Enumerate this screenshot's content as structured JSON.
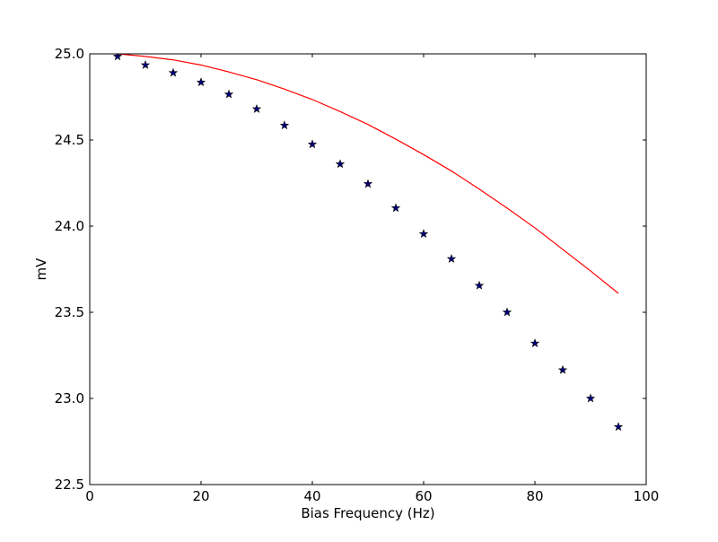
{
  "chart_data": {
    "type": "scatter",
    "title": "",
    "xlabel": "Bias Frequency (Hz)",
    "ylabel": "mV",
    "xlim": [
      0,
      100
    ],
    "ylim": [
      22.5,
      25.0
    ],
    "xticks": [
      0,
      20,
      40,
      60,
      80,
      100
    ],
    "xtick_labels": [
      "0",
      "20",
      "40",
      "60",
      "80",
      "100"
    ],
    "yticks": [
      22.5,
      23.0,
      23.5,
      24.0,
      24.5,
      25.0
    ],
    "ytick_labels": [
      "22.5",
      "23.0",
      "23.5",
      "24.0",
      "24.5",
      "25.0"
    ],
    "grid": false,
    "legend": "none",
    "series": [
      {
        "type": "line",
        "color": "#ff0000",
        "x": [
          5,
          10,
          15,
          20,
          25,
          30,
          35,
          40,
          45,
          50,
          55,
          60,
          65,
          70,
          75,
          80,
          85,
          90,
          95
        ],
        "y": [
          25.0,
          24.985,
          24.965,
          24.935,
          24.895,
          24.85,
          24.795,
          24.735,
          24.665,
          24.59,
          24.505,
          24.415,
          24.32,
          24.215,
          24.105,
          23.99,
          23.865,
          23.74,
          23.61
        ]
      },
      {
        "type": "scatter",
        "marker": "star",
        "color": "#000080",
        "x": [
          5,
          10,
          15,
          20,
          25,
          30,
          35,
          40,
          45,
          50,
          55,
          60,
          65,
          70,
          75,
          80,
          85,
          90,
          95
        ],
        "y": [
          24.985,
          24.935,
          24.89,
          24.835,
          24.765,
          24.68,
          24.585,
          24.475,
          24.36,
          24.245,
          24.105,
          23.955,
          23.81,
          23.655,
          23.5,
          23.32,
          23.165,
          23.0,
          22.835
        ]
      }
    ]
  }
}
